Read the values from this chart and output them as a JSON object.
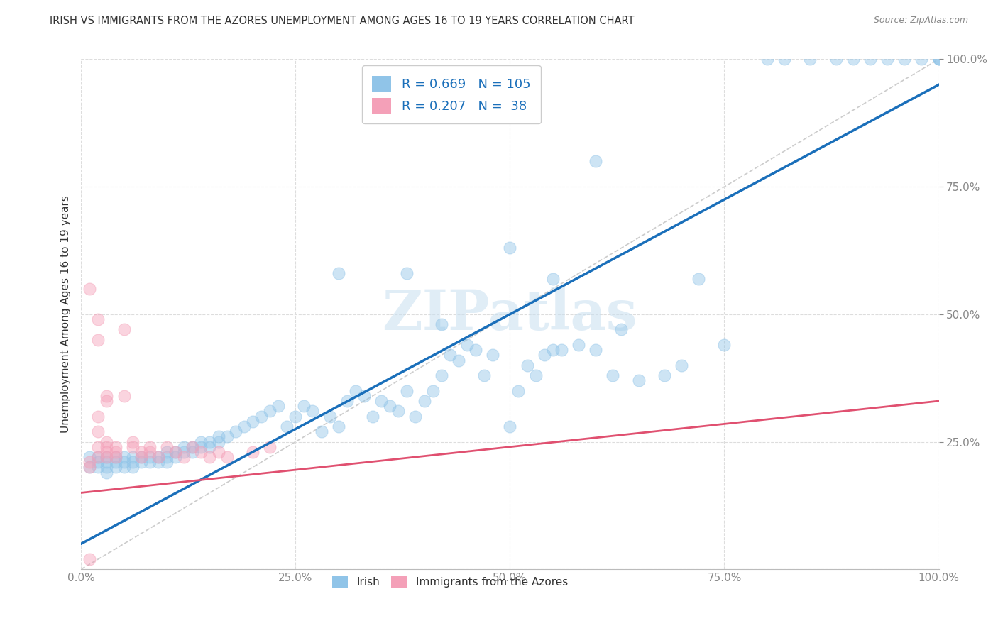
{
  "title": "IRISH VS IMMIGRANTS FROM THE AZORES UNEMPLOYMENT AMONG AGES 16 TO 19 YEARS CORRELATION CHART",
  "source": "Source: ZipAtlas.com",
  "ylabel": "Unemployment Among Ages 16 to 19 years",
  "xlim": [
    0,
    1.0
  ],
  "ylim": [
    0,
    1.0
  ],
  "xtick_labels": [
    "0.0%",
    "25.0%",
    "50.0%",
    "75.0%",
    "100.0%"
  ],
  "xtick_vals": [
    0.0,
    0.25,
    0.5,
    0.75,
    1.0
  ],
  "ytick_labels_right": [
    "100.0%",
    "75.0%",
    "50.0%",
    "25.0%"
  ],
  "ytick_vals_right": [
    1.0,
    0.75,
    0.5,
    0.25
  ],
  "blue_color": "#90c4e8",
  "pink_color": "#f4a0b8",
  "blue_line_color": "#1a6fba",
  "pink_line_color": "#e05070",
  "diag_color": "#cccccc",
  "watermark": "ZIPatlas",
  "legend_R_blue": "0.669",
  "legend_N_blue": "105",
  "legend_R_pink": "0.207",
  "legend_N_pink": "38",
  "blue_intercept": 0.05,
  "blue_slope": 0.9,
  "pink_intercept": 0.15,
  "pink_slope": 0.18,
  "blue_points_x": [
    0.01,
    0.01,
    0.02,
    0.02,
    0.02,
    0.03,
    0.03,
    0.03,
    0.03,
    0.04,
    0.04,
    0.04,
    0.05,
    0.05,
    0.05,
    0.06,
    0.06,
    0.06,
    0.07,
    0.07,
    0.08,
    0.08,
    0.09,
    0.09,
    0.1,
    0.1,
    0.1,
    0.11,
    0.11,
    0.12,
    0.12,
    0.13,
    0.13,
    0.14,
    0.14,
    0.15,
    0.15,
    0.16,
    0.16,
    0.17,
    0.18,
    0.19,
    0.2,
    0.21,
    0.22,
    0.23,
    0.24,
    0.25,
    0.26,
    0.27,
    0.28,
    0.29,
    0.3,
    0.31,
    0.32,
    0.33,
    0.34,
    0.35,
    0.36,
    0.37,
    0.38,
    0.39,
    0.4,
    0.41,
    0.42,
    0.43,
    0.44,
    0.45,
    0.46,
    0.47,
    0.48,
    0.5,
    0.51,
    0.52,
    0.53,
    0.54,
    0.55,
    0.56,
    0.58,
    0.6,
    0.62,
    0.63,
    0.65,
    0.68,
    0.7,
    0.72,
    0.75,
    0.8,
    0.82,
    0.85,
    0.88,
    0.9,
    0.92,
    0.94,
    0.96,
    0.98,
    1.0,
    1.0,
    1.0,
    0.3,
    0.38,
    0.42,
    0.5,
    0.55,
    0.6
  ],
  "blue_points_y": [
    0.2,
    0.22,
    0.2,
    0.21,
    0.22,
    0.2,
    0.21,
    0.22,
    0.19,
    0.21,
    0.2,
    0.22,
    0.21,
    0.2,
    0.22,
    0.21,
    0.22,
    0.2,
    0.21,
    0.22,
    0.22,
    0.21,
    0.22,
    0.21,
    0.23,
    0.22,
    0.21,
    0.23,
    0.22,
    0.24,
    0.23,
    0.24,
    0.23,
    0.25,
    0.24,
    0.25,
    0.24,
    0.26,
    0.25,
    0.26,
    0.27,
    0.28,
    0.29,
    0.3,
    0.31,
    0.32,
    0.28,
    0.3,
    0.32,
    0.31,
    0.27,
    0.3,
    0.28,
    0.33,
    0.35,
    0.34,
    0.3,
    0.33,
    0.32,
    0.31,
    0.35,
    0.3,
    0.33,
    0.35,
    0.38,
    0.42,
    0.41,
    0.44,
    0.43,
    0.38,
    0.42,
    0.28,
    0.35,
    0.4,
    0.38,
    0.42,
    0.43,
    0.43,
    0.44,
    0.43,
    0.38,
    0.47,
    0.37,
    0.38,
    0.4,
    0.57,
    0.44,
    1.0,
    1.0,
    1.0,
    1.0,
    1.0,
    1.0,
    1.0,
    1.0,
    1.0,
    1.0,
    1.0,
    1.0,
    0.58,
    0.58,
    0.48,
    0.63,
    0.57,
    0.8
  ],
  "pink_points_x": [
    0.01,
    0.01,
    0.01,
    0.02,
    0.02,
    0.02,
    0.02,
    0.03,
    0.03,
    0.03,
    0.03,
    0.04,
    0.04,
    0.04,
    0.05,
    0.05,
    0.06,
    0.06,
    0.07,
    0.07,
    0.08,
    0.08,
    0.09,
    0.1,
    0.11,
    0.12,
    0.13,
    0.14,
    0.15,
    0.16,
    0.17,
    0.2,
    0.22,
    0.01,
    0.02,
    0.02,
    0.03,
    0.03
  ],
  "pink_points_y": [
    0.21,
    0.2,
    0.02,
    0.3,
    0.27,
    0.22,
    0.24,
    0.25,
    0.24,
    0.23,
    0.22,
    0.24,
    0.23,
    0.22,
    0.34,
    0.47,
    0.25,
    0.24,
    0.23,
    0.22,
    0.24,
    0.23,
    0.22,
    0.24,
    0.23,
    0.22,
    0.24,
    0.23,
    0.22,
    0.23,
    0.22,
    0.23,
    0.24,
    0.55,
    0.49,
    0.45,
    0.34,
    0.33
  ],
  "background_color": "#ffffff",
  "grid_color": "#dddddd",
  "title_color": "#333333",
  "axis_label_color": "#333333",
  "right_axis_color": "#4a90d9"
}
